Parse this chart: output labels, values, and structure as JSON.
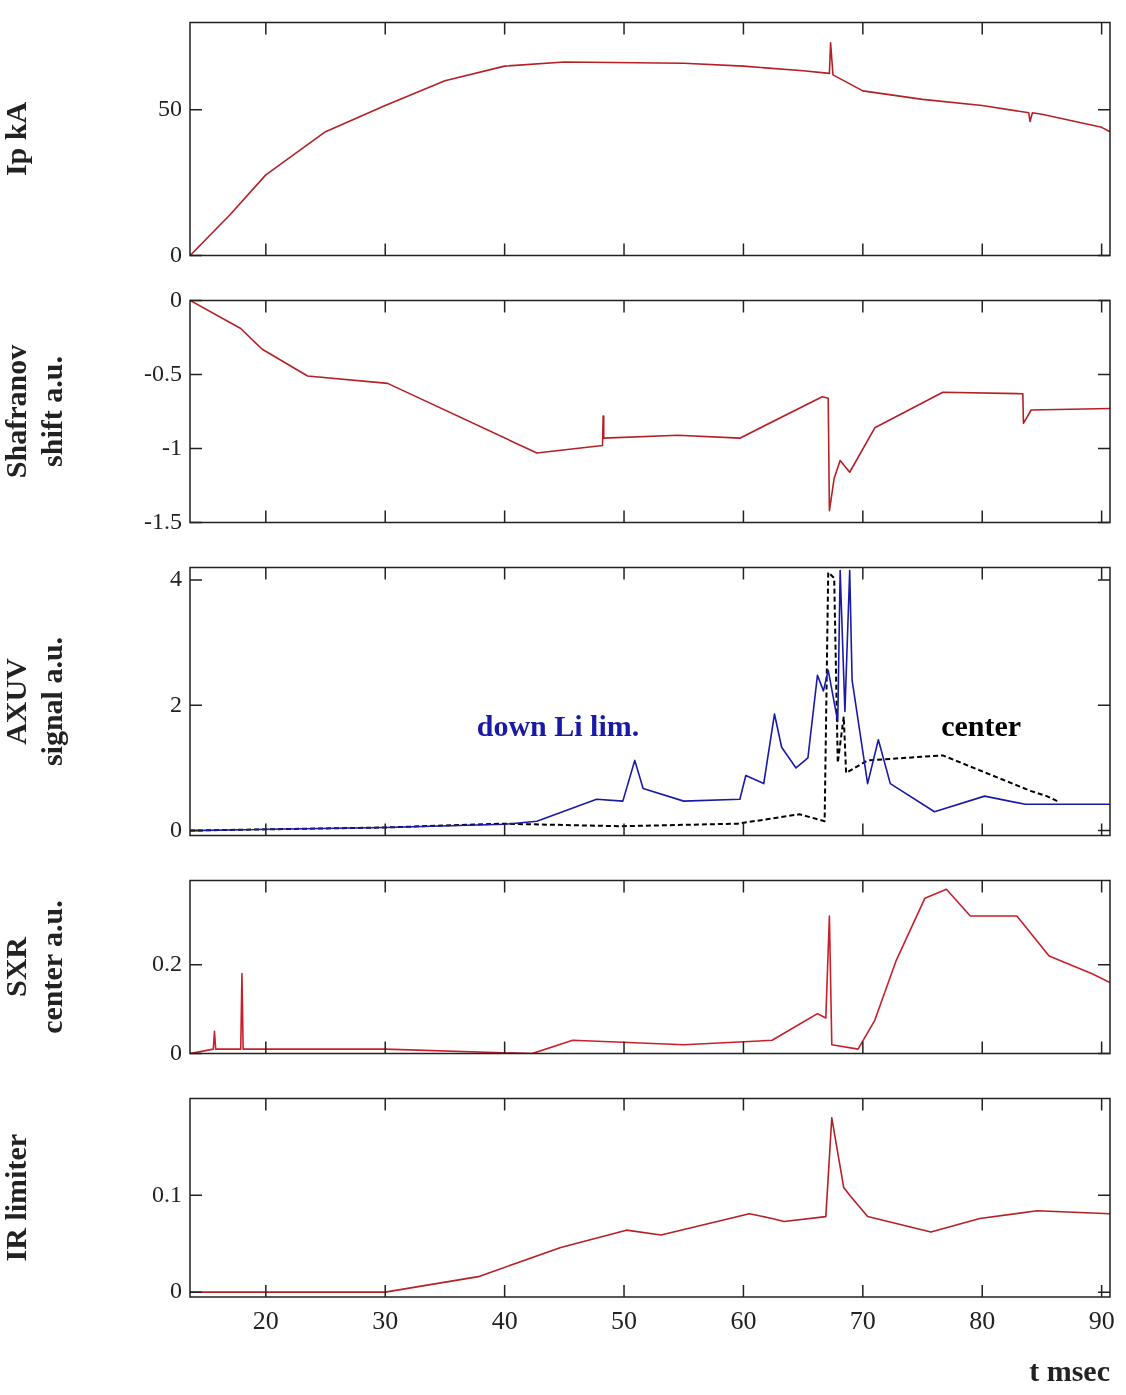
{
  "chart_data": [
    {
      "type": "line",
      "ylabel": "Ip kA",
      "xlim": [
        13.65,
        90.7
      ],
      "xticks": [
        20,
        30,
        40,
        50,
        60,
        70,
        80,
        90
      ],
      "ylim": [
        0,
        80
      ],
      "yticks": [
        0,
        50
      ],
      "tick_labels": "y",
      "series": [
        {
          "color": "#b52025",
          "x": [
            13.65,
            17,
            20,
            25,
            30,
            35,
            40,
            45,
            55,
            60,
            65,
            67.2,
            67.3,
            67.5,
            70,
            75,
            80,
            83.9,
            84,
            84.2,
            85,
            90,
            90.7
          ],
          "values": [
            0,
            14,
            27.7,
            42.5,
            51.5,
            60,
            65,
            66.4,
            66,
            65,
            63.4,
            62.5,
            73,
            62,
            56.5,
            53.6,
            51.5,
            49,
            46,
            49,
            48.5,
            44,
            42.5
          ]
        }
      ]
    },
    {
      "type": "line",
      "ylabel": "Shafranov shift a.u.",
      "xlim": [
        13.65,
        90.7
      ],
      "xticks": [
        20,
        30,
        40,
        50,
        60,
        70,
        80,
        90
      ],
      "ylim": [
        -1.5,
        0
      ],
      "yticks": [
        0,
        -0.5,
        -1,
        -1.5
      ],
      "tick_labels": "y",
      "series": [
        {
          "color": "#b52025",
          "x": [
            13.65,
            17.9,
            19.7,
            23.5,
            30.2,
            42.7,
            48.2,
            48.25,
            48.3,
            54.5,
            59.7,
            66.6,
            67.1,
            67.2,
            67.6,
            68.1,
            68.9,
            71,
            76.7,
            83.4,
            83.45,
            84.1,
            90.7
          ],
          "values": [
            0,
            -0.19,
            -0.33,
            -0.51,
            -0.56,
            -1.03,
            -0.98,
            -0.78,
            -0.93,
            -0.91,
            -0.93,
            -0.65,
            -0.66,
            -1.42,
            -1.2,
            -1.08,
            -1.16,
            -0.86,
            -0.62,
            -0.63,
            -0.83,
            -0.74,
            -0.73
          ]
        }
      ]
    },
    {
      "type": "line",
      "ylabel": "AXUV signal a.u.",
      "xlim": [
        13.65,
        90.7
      ],
      "xticks": [
        20,
        30,
        40,
        50,
        60,
        70,
        80,
        90
      ],
      "ylim": [
        -0.08,
        4.2
      ],
      "yticks": [
        0,
        2,
        4
      ],
      "tick_labels": "y",
      "series": [
        {
          "name": "down Li lim.",
          "color": "#1a1aa8",
          "x": [
            13.65,
            30,
            40,
            42.7,
            47.7,
            49.9,
            50.9,
            51.6,
            55,
            59.7,
            60.2,
            61.7,
            62.6,
            63.2,
            64.4,
            65.4,
            66.2,
            66.7,
            67.1,
            67.9,
            68.1,
            68.5,
            68.9,
            69.1,
            70.4,
            71.3,
            72.3,
            76,
            80.2,
            83.6,
            90.7
          ],
          "values": [
            0,
            0.05,
            0.1,
            0.15,
            0.5,
            0.47,
            1.12,
            0.67,
            0.47,
            0.5,
            0.88,
            0.75,
            1.86,
            1.33,
            1,
            1.16,
            2.48,
            2.23,
            2.56,
            1.74,
            4.15,
            1.9,
            4.15,
            2.4,
            0.75,
            1.45,
            0.75,
            0.3,
            0.55,
            0.42,
            0.42
          ]
        },
        {
          "name": "center",
          "color": "#000000",
          "line_style": "dashed",
          "x": [
            13.65,
            30,
            39.8,
            49.7,
            59.5,
            64.7,
            66.8,
            67.1,
            67.6,
            67.9,
            68.4,
            68.6,
            70.4,
            76.7,
            84.1,
            85.4,
            86.5
          ],
          "values": [
            0,
            0.05,
            0.11,
            0.07,
            0.11,
            0.26,
            0.15,
            4.12,
            4.03,
            1.08,
            1.82,
            0.92,
            1.12,
            1.2,
            0.63,
            0.55,
            0.45
          ]
        }
      ]
    },
    {
      "type": "line",
      "ylabel": "SXR center a.u.",
      "xlim": [
        13.65,
        90.7
      ],
      "xticks": [
        20,
        30,
        40,
        50,
        60,
        70,
        80,
        90
      ],
      "ylim": [
        0,
        0.39
      ],
      "yticks": [
        0,
        0.2
      ],
      "tick_labels": "y",
      "series": [
        {
          "color": "#c8202a",
          "x": [
            13.65,
            15.6,
            15.7,
            15.8,
            16.2,
            17.9,
            18,
            18.1,
            18.2,
            30,
            42.3,
            45.7,
            55,
            62.4,
            66.2,
            66.9,
            67.2,
            67.4,
            69.6,
            71,
            72.8,
            75.2,
            77,
            79,
            82.9,
            85.6,
            89.2,
            90.7
          ],
          "values": [
            0,
            0.01,
            0.05,
            0.01,
            0.01,
            0.01,
            0.18,
            0.01,
            0.01,
            0.01,
            0,
            0.03,
            0.02,
            0.03,
            0.09,
            0.08,
            0.31,
            0.02,
            0.01,
            0.075,
            0.21,
            0.35,
            0.37,
            0.31,
            0.31,
            0.22,
            0.18,
            0.16
          ]
        }
      ]
    },
    {
      "type": "line",
      "ylabel": "IR limiter",
      "xlabel": "t msec",
      "xlim": [
        13.65,
        90.7
      ],
      "xticks": [
        20,
        30,
        40,
        50,
        60,
        70,
        80,
        90
      ],
      "ylim": [
        -0.005,
        0.2
      ],
      "yticks": [
        0,
        0.1
      ],
      "series": [
        {
          "color": "#b52025",
          "x": [
            13.65,
            30,
            37.8,
            44.7,
            50.2,
            53.1,
            60.5,
            62.4,
            63.4,
            66.9,
            67.4,
            68.4,
            68.9,
            70.4,
            75.7,
            79.8,
            84.6,
            90.7
          ],
          "values": [
            0,
            0,
            0.016,
            0.046,
            0.064,
            0.059,
            0.081,
            0.076,
            0.073,
            0.078,
            0.18,
            0.108,
            0.1,
            0.078,
            0.062,
            0.076,
            0.084,
            0.081
          ]
        }
      ]
    }
  ]
}
